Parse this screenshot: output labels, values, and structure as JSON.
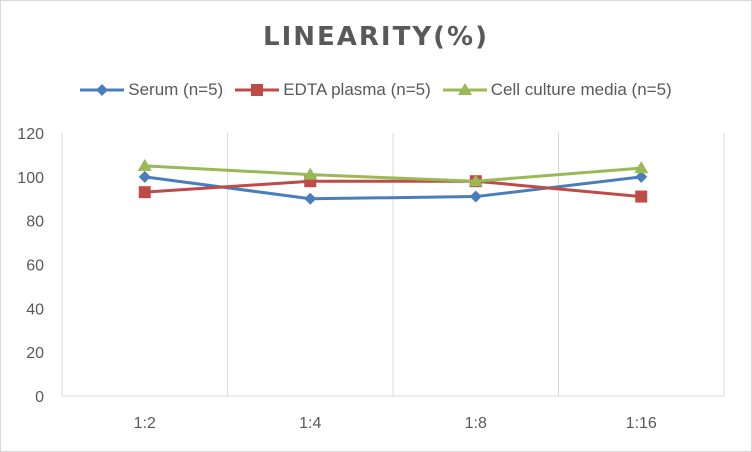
{
  "chart_data": {
    "type": "line",
    "title": "LINEARITY(%)",
    "categories": [
      "1:2",
      "1:4",
      "1:8",
      "1:16"
    ],
    "ylim": [
      0,
      120
    ],
    "yticks": [
      0,
      20,
      40,
      60,
      80,
      100,
      120
    ],
    "grid": "vertical",
    "legend": "top",
    "series": [
      {
        "name": "Serum (n=5)",
        "values": [
          100,
          90,
          91,
          100
        ],
        "color": "#4a7ebb",
        "marker": "diamond"
      },
      {
        "name": "EDTA plasma (n=5)",
        "values": [
          93,
          98,
          98,
          91
        ],
        "color": "#be4b48",
        "marker": "square"
      },
      {
        "name": "Cell culture media (n=5)",
        "values": [
          105,
          101,
          98,
          104
        ],
        "color": "#98b954",
        "marker": "triangle"
      }
    ]
  }
}
